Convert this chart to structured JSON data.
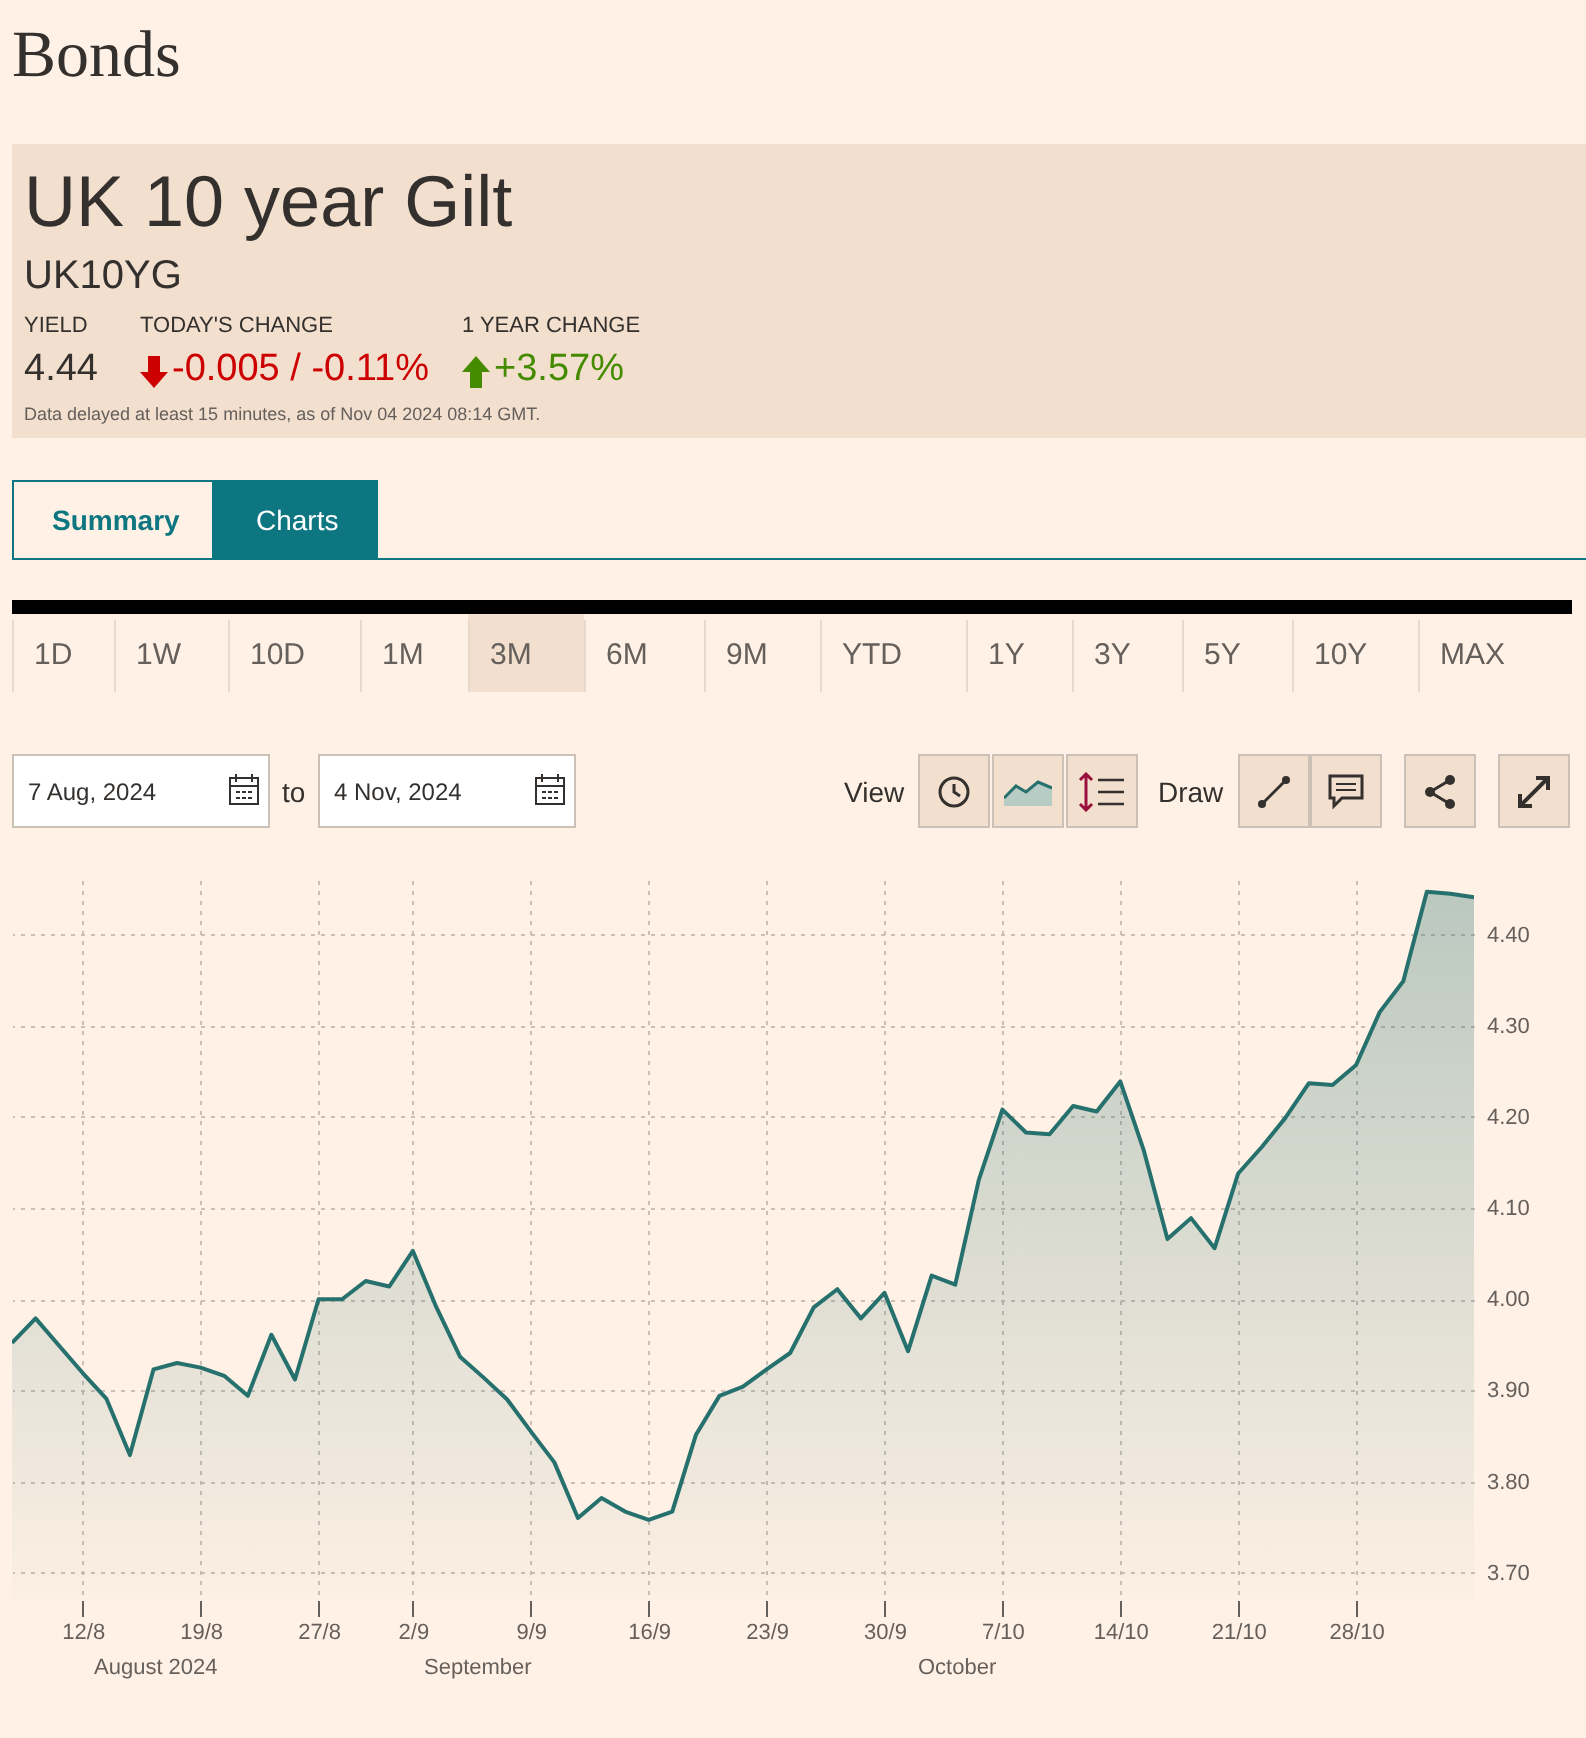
{
  "chart_data": {
    "type": "area",
    "title": "UK 10 year Gilt",
    "subtitle": "UK10YG",
    "categories": [
      null,
      null,
      null,
      "12/8",
      null,
      null,
      null,
      null,
      "19/8",
      null,
      null,
      null,
      null,
      "27/8",
      null,
      null,
      null,
      "2/9",
      null,
      null,
      null,
      null,
      "9/9",
      null,
      null,
      null,
      null,
      "16/9",
      null,
      null,
      null,
      null,
      "23/9",
      null,
      null,
      null,
      null,
      "30/9",
      null,
      null,
      null,
      null,
      "7/10",
      null,
      null,
      null,
      null,
      "14/10",
      null,
      null,
      null,
      null,
      "21/10",
      null,
      null,
      null,
      null,
      "28/10",
      null,
      null,
      null,
      null,
      null
    ],
    "series": [
      {
        "color": "#26706d",
        "values": [
          3.952,
          3.979,
          3.949,
          3.919,
          3.891,
          3.829,
          3.923,
          3.93,
          3.925,
          3.916,
          3.894,
          3.961,
          3.912,
          4.0,
          4.0,
          4.02,
          4.014,
          4.053,
          3.991,
          3.937,
          3.914,
          3.89,
          3.855,
          3.821,
          3.76,
          3.782,
          3.767,
          3.758,
          3.767,
          3.851,
          3.894,
          3.904,
          3.923,
          3.941,
          3.991,
          4.011,
          3.979,
          4.007,
          3.943,
          4.026,
          4.016,
          4.131,
          4.208,
          4.183,
          4.181,
          4.212,
          4.206,
          4.239,
          4.163,
          4.066,
          4.089,
          4.056,
          4.138,
          4.167,
          4.199,
          4.237,
          4.235,
          4.257,
          4.315,
          4.349,
          4.447,
          4.445,
          4.441
        ]
      }
    ],
    "ylim": [
      3.67,
      4.46
    ],
    "yticks": [
      {
        "value": 3.7,
        "label": "3.70"
      },
      {
        "value": 3.8,
        "label": "3.80"
      },
      {
        "value": 3.9,
        "label": "3.90"
      },
      {
        "value": 4.0,
        "label": "4.00"
      },
      {
        "value": 4.1,
        "label": "4.10"
      },
      {
        "value": 4.2,
        "label": "4.20"
      },
      {
        "value": 4.3,
        "label": "4.30"
      },
      {
        "value": 4.4,
        "label": "4.40"
      }
    ],
    "grid": true,
    "annotations": [
      "Bonds",
      "YIELD",
      "4.44",
      "TODAY'S CHANGE",
      "-0.005 / -0.11%",
      "1 YEAR CHANGE",
      "+3.57%",
      "Data delayed at least 15 minutes, as of Nov 04 2024 08:14 GMT.",
      "Summary",
      "Charts",
      "1D",
      "1W",
      "10D",
      "1M",
      "3M",
      "6M",
      "9M",
      "YTD",
      "1Y",
      "3Y",
      "5Y",
      "10Y",
      "MAX",
      "7 Aug, 2024",
      "to",
      "4 Nov, 2024",
      "View",
      "Draw",
      "August 2024",
      "September",
      "October"
    ]
  }
}
